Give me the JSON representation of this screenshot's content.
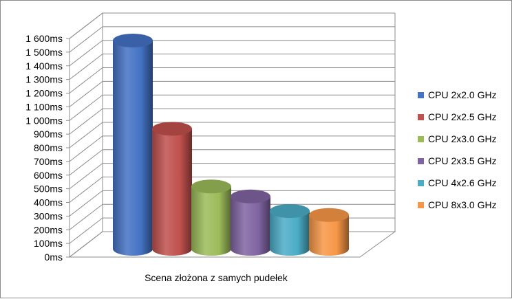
{
  "chart_data": {
    "type": "bar",
    "style": "3d-cylinder",
    "categories": [
      "Scena złożona z samych pudełek"
    ],
    "series": [
      {
        "name": "CPU 2x2.0 GHz",
        "values": [
          1570
        ],
        "color": "#4472C4"
      },
      {
        "name": "CPU 2x2.5 GHz",
        "values": [
          905
        ],
        "color": "#C0504D"
      },
      {
        "name": "CPU 2x3.0 GHz",
        "values": [
          470
        ],
        "color": "#9BBB59"
      },
      {
        "name": "CPU 2x3.5 GHz",
        "values": [
          395
        ],
        "color": "#8064A2"
      },
      {
        "name": "CPU 4x2.6 GHz",
        "values": [
          285
        ],
        "color": "#4BACC6"
      },
      {
        "name": "CPU 8x3.0 GHz",
        "values": [
          255
        ],
        "color": "#F79646"
      }
    ],
    "yticks": [
      "0ms",
      "100ms",
      "200ms",
      "300ms",
      "400ms",
      "500ms",
      "600ms",
      "700ms",
      "800ms",
      "900ms",
      "1 000ms",
      "1 100ms",
      "1 200ms",
      "1 300ms",
      "1 400ms",
      "1 500ms",
      "1 600ms"
    ],
    "ylim": [
      0,
      1600
    ],
    "grid": true,
    "legend_position": "right"
  }
}
